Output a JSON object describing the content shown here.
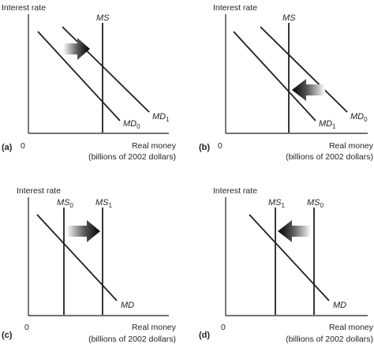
{
  "panels": [
    {
      "tag": "(a)",
      "y_axis_label": "Interest rate",
      "x_axis_label": "Real money",
      "x_axis_unit": "(billions of 2002 dollars)",
      "origin": "0",
      "ms_label": {
        "main": "MS",
        "sub": ""
      },
      "ms_label_2": {
        "main": "",
        "sub": ""
      },
      "md_label": {
        "main": "MD",
        "sub": "0"
      },
      "md_label_2": {
        "main": "MD",
        "sub": "1"
      },
      "arrow_direction": "right"
    },
    {
      "tag": "(b)",
      "y_axis_label": "Interest rate",
      "x_axis_label": "Real money",
      "x_axis_unit": "(billions of 2002 dollars)",
      "origin": "0",
      "ms_label": {
        "main": "MS",
        "sub": ""
      },
      "ms_label_2": {
        "main": "",
        "sub": ""
      },
      "md_label": {
        "main": "MD",
        "sub": "1"
      },
      "md_label_2": {
        "main": "MD",
        "sub": "0"
      },
      "arrow_direction": "left"
    },
    {
      "tag": "(c)",
      "y_axis_label": "Interest rate",
      "x_axis_label": "Real money",
      "x_axis_unit": "(billions of 2002 dollars)",
      "origin": "0",
      "ms_label": {
        "main": "MS",
        "sub": "0"
      },
      "ms_label_2": {
        "main": "MS",
        "sub": "1"
      },
      "md_label": {
        "main": "MD",
        "sub": ""
      },
      "md_label_2": {
        "main": "",
        "sub": ""
      },
      "arrow_direction": "right"
    },
    {
      "tag": "(d)",
      "y_axis_label": "Interest rate",
      "x_axis_label": "Real money",
      "x_axis_unit": "(billions of 2002 dollars)",
      "origin": "0",
      "ms_label": {
        "main": "MS",
        "sub": "1"
      },
      "ms_label_2": {
        "main": "MS",
        "sub": "0"
      },
      "md_label": {
        "main": "MD",
        "sub": ""
      },
      "md_label_2": {
        "main": "",
        "sub": ""
      },
      "arrow_direction": "left"
    }
  ],
  "colors": {
    "ink": "#231f20",
    "background": "#ffffff"
  }
}
